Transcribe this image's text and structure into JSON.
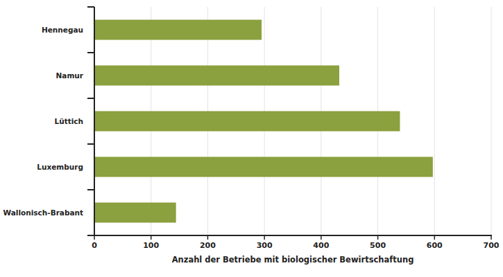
{
  "chart_data": {
    "type": "bar",
    "orientation": "horizontal",
    "categories": [
      "Hennegau",
      "Namur",
      "Lüttich",
      "Luxemburg",
      "Wallonisch-Brabant"
    ],
    "values": [
      295,
      432,
      539,
      597,
      144
    ],
    "color": "#8ba03e",
    "x_label": "Anzahl der Betriebe mit biologischer Bewirtschaftung",
    "xlim": [
      0,
      700
    ],
    "xticks": [
      0,
      100,
      200,
      300,
      400,
      500,
      600,
      700
    ],
    "grid": true
  }
}
